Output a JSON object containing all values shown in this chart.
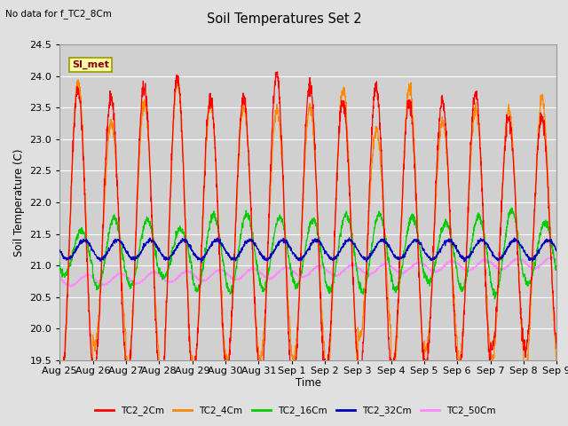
{
  "title": "Soil Temperatures Set 2",
  "subtitle": "No data for f_TC2_8Cm",
  "xlabel": "Time",
  "ylabel": "Soil Temperature (C)",
  "ylim": [
    19.5,
    24.5
  ],
  "background_color": "#e0e0e0",
  "plot_bg_color": "#d0d0d0",
  "grid_color": "#ffffff",
  "colors": {
    "TC2_2Cm": "#ff0000",
    "TC2_4Cm": "#ff8800",
    "TC2_16Cm": "#00cc00",
    "TC2_32Cm": "#0000bb",
    "TC2_50Cm": "#ff88ff"
  },
  "legend_labels": [
    "TC2_2Cm",
    "TC2_4Cm",
    "TC2_16Cm",
    "TC2_32Cm",
    "TC2_50Cm"
  ],
  "annotation_box": "SI_met",
  "xtick_labels": [
    "Aug 25",
    "Aug 26",
    "Aug 27",
    "Aug 28",
    "Aug 29",
    "Aug 30",
    "Aug 31",
    "Sep 1",
    "Sep 2",
    "Sep 3",
    "Sep 4",
    "Sep 5",
    "Sep 6",
    "Sep 7",
    "Sep 8",
    "Sep 9"
  ],
  "num_days": 15,
  "samples_per_day": 144
}
